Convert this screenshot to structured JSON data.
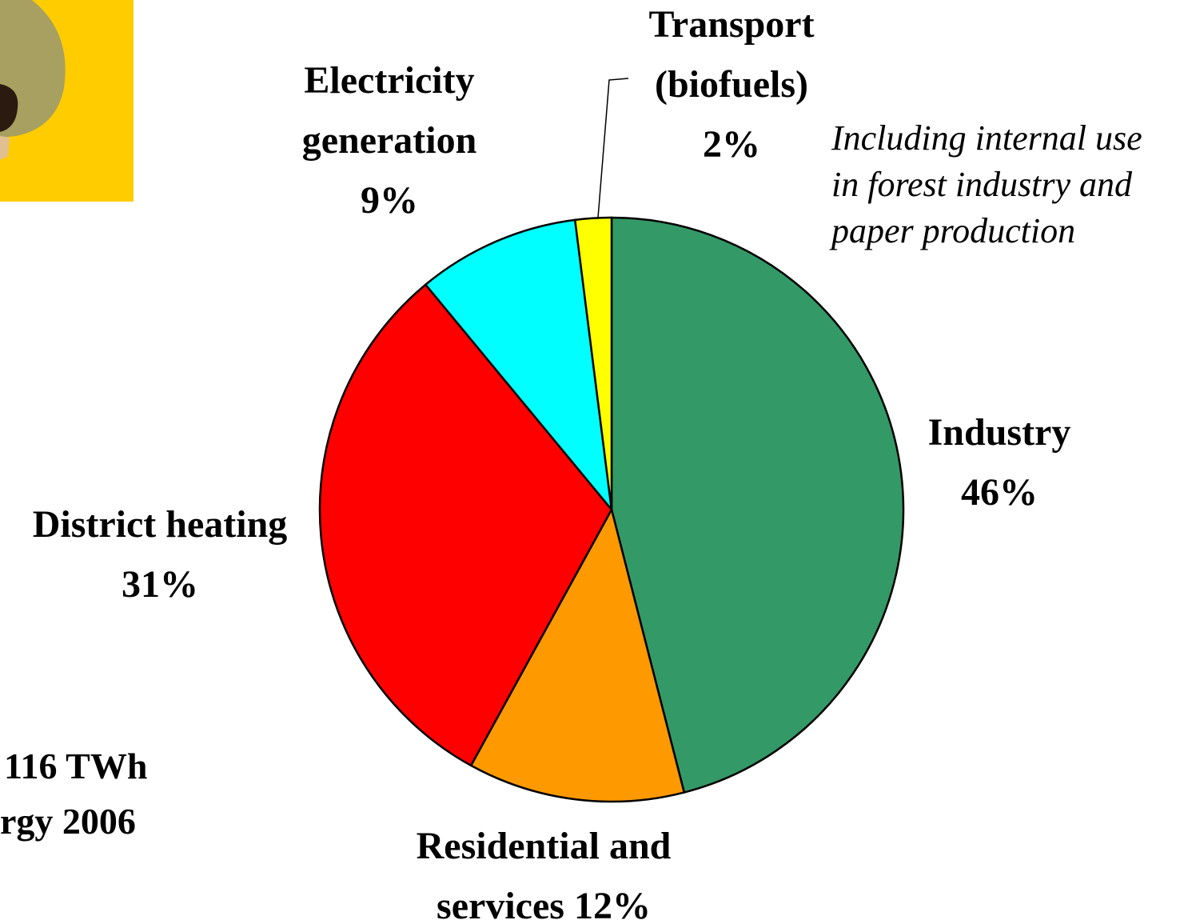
{
  "chart_data": {
    "type": "pie",
    "categories": [
      "Industry",
      "Residential and services",
      "District heating",
      "Electricity generation",
      "Transport (biofuels)"
    ],
    "values": [
      46,
      12,
      31,
      9,
      2
    ],
    "value_labels": [
      "46%",
      "12%",
      "31%",
      "9%",
      "2%"
    ],
    "colors": [
      "#339966",
      "#ff9900",
      "#ff0000",
      "#00ffff",
      "#ffff00"
    ],
    "annotations": [
      "Including internal use in forest industry and paper production",
      "116 TWh",
      "rgy 2006"
    ]
  }
}
